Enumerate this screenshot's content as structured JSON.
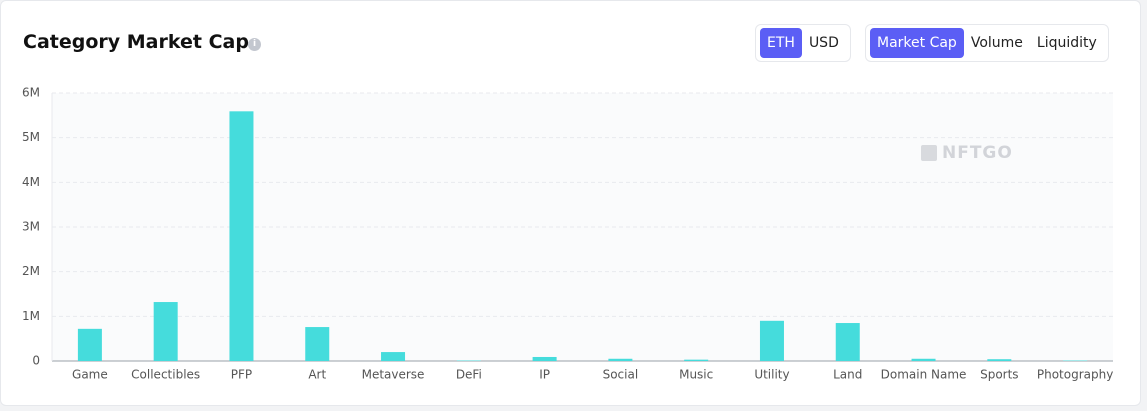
{
  "chart_data": {
    "type": "bar",
    "title": "Category Market Cap",
    "currency_options": [
      "ETH",
      "USD"
    ],
    "metric_options": [
      "Market Cap",
      "Volume",
      "Liquidity"
    ],
    "watermark": "NFTGO",
    "categories": [
      "Game",
      "Collectibles",
      "PFP",
      "Art",
      "Metaverse",
      "DeFi",
      "IP",
      "Social",
      "Music",
      "Utility",
      "Land",
      "Domain Name",
      "Sports",
      "Photography"
    ],
    "values": [
      720000,
      1320000,
      5590000,
      760000,
      200000,
      10000,
      90000,
      50000,
      30000,
      900000,
      850000,
      50000,
      40000,
      10000
    ],
    "color": "#45dcdc",
    "ylim": [
      0,
      6000000
    ],
    "yticks": [
      0,
      {
        "value": 1000000,
        "label": "1M"
      },
      {
        "value": 2000000,
        "label": "2M"
      },
      {
        "value": 3000000,
        "label": "3M"
      },
      {
        "value": 4000000,
        "label": "4M"
      },
      {
        "value": 5000000,
        "label": "5M"
      },
      {
        "value": 6000000,
        "label": "6M"
      }
    ],
    "grid": true
  }
}
